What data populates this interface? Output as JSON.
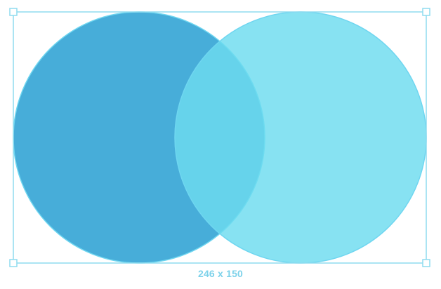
{
  "selection": {
    "size_label": "246 x 150"
  },
  "colors": {
    "selection_outline": "#8fdcef",
    "size_label": "#7dd2ea",
    "left_circle_fill": "#47add9",
    "right_circle_fill": "#6ddcef",
    "circle_stroke": "#6fd6f0",
    "handle_fill": "#ffffff"
  },
  "shapes": [
    {
      "name": "left-circle-shape"
    },
    {
      "name": "right-circle-shape"
    }
  ]
}
